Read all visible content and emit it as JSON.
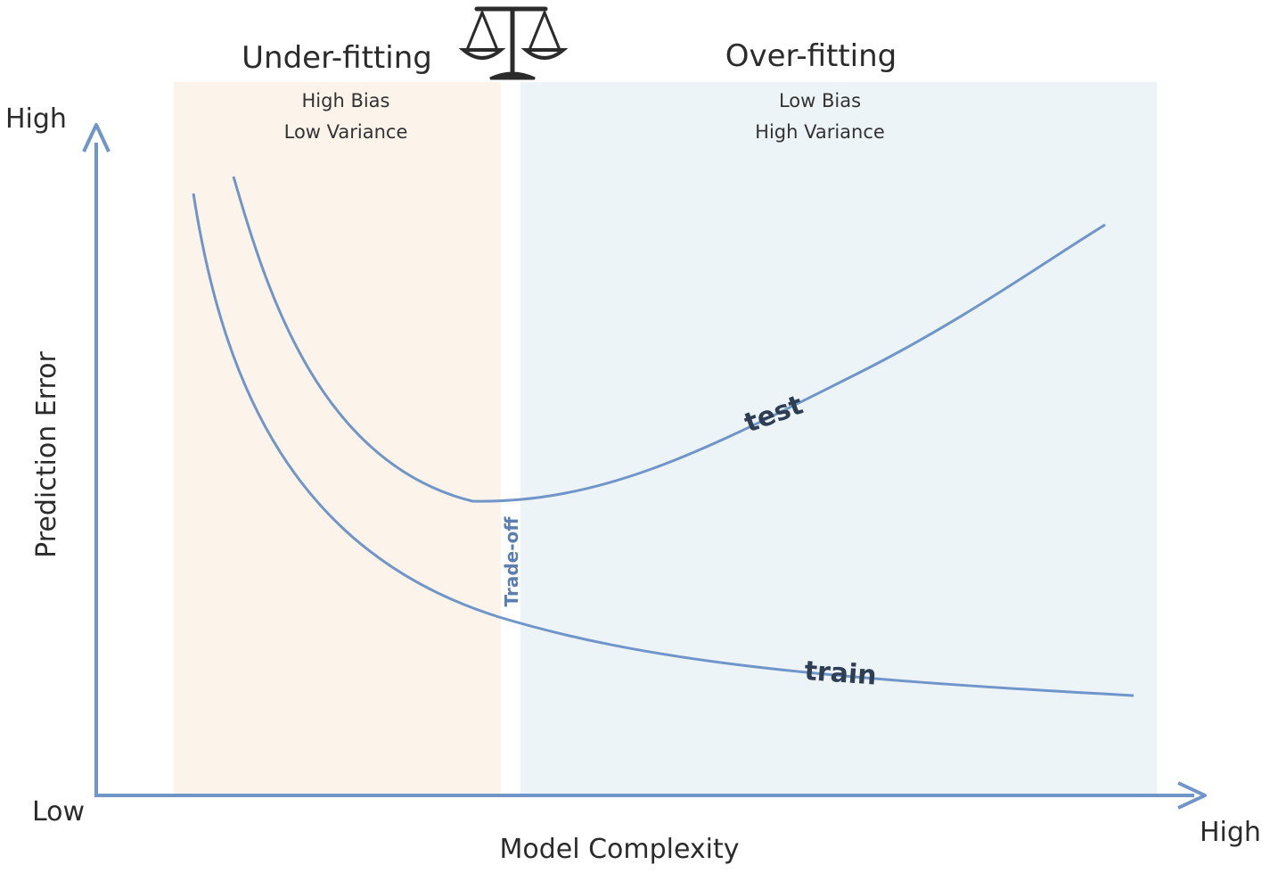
{
  "zones": {
    "underfitting": {
      "title": "Under-fitting",
      "line1": "High Bias",
      "line2": "Low Variance"
    },
    "overfitting": {
      "title": "Over-fitting",
      "line1": "Low Bias",
      "line2": "High Variance"
    }
  },
  "axes": {
    "y_label": "Prediction Error",
    "y_high": "High",
    "origin_low": "Low",
    "x_label": "Model Complexity",
    "x_high": "High"
  },
  "curves": {
    "test_label": "test",
    "train_label": "train"
  },
  "tradeoff_label": "Trade-off",
  "icons": {
    "balance": "balance-scale-icon"
  },
  "colors": {
    "curve": "#6f95c9",
    "axis": "#6f95c9",
    "underfit_bg": "#fcf3ea",
    "overfit_bg": "#ecf4f8",
    "text": "#2b2b2b"
  }
}
